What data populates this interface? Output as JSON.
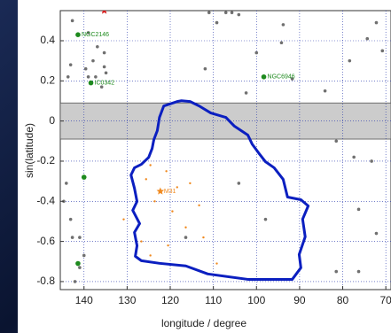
{
  "chart_data": {
    "type": "scatter",
    "xlabel": "longitude / degree",
    "ylabel": "sin(latitude)",
    "xlim": [
      145.5,
      68.8
    ],
    "ylim": [
      -0.84,
      0.55
    ],
    "xticks": [
      140,
      130,
      120,
      110,
      100,
      90,
      80,
      70
    ],
    "yticks": [
      -0.8,
      -0.6,
      -0.4,
      -0.2,
      0,
      0.2,
      0.4
    ],
    "grid": true,
    "grid_color": "#2233aa",
    "band": [
      -0.09,
      0.09
    ],
    "band_color": "#cccccc",
    "series": [
      {
        "style": "polygon",
        "color": "#0b1fc0",
        "x": [
          118.4,
          121.5,
          122.5,
          123.0,
          123.8,
          124.2,
          125.0,
          126.7,
          128.3,
          129.1,
          128.3,
          127.7,
          128.7,
          127.1,
          128.3,
          127.7,
          128.1,
          126.7,
          122.5,
          116.4,
          111.3,
          102.0,
          91.7,
          89.7,
          90.1,
          88.7,
          89.3,
          88.0,
          89.7,
          92.8,
          93.8,
          95.9,
          97.9,
          99.5,
          101.0,
          102.0,
          105.1,
          107.1,
          110.6,
          113.3,
          115.4,
          117.4
        ],
        "y": [
          0.097,
          0.075,
          0.018,
          -0.048,
          -0.093,
          -0.137,
          -0.181,
          -0.216,
          -0.233,
          -0.269,
          -0.335,
          -0.401,
          -0.445,
          -0.511,
          -0.555,
          -0.621,
          -0.674,
          -0.696,
          -0.709,
          -0.722,
          -0.762,
          -0.789,
          -0.789,
          -0.731,
          -0.665,
          -0.577,
          -0.489,
          -0.423,
          -0.392,
          -0.379,
          -0.291,
          -0.233,
          -0.203,
          -0.159,
          -0.115,
          -0.07,
          -0.026,
          0.018,
          0.04,
          0.075,
          0.097,
          0.101
        ]
      },
      {
        "style": "dot",
        "color": "#707070",
        "x": [
          142.7,
          139.0,
          136.9,
          135.3,
          135.3,
          134.9,
          139.6,
          139.0,
          137.3,
          135.9,
          143.7,
          143.1,
          137.9,
          107.1,
          105.7,
          104.1,
          109.2,
          111.0,
          93.8,
          94.2,
          100.0,
          111.9,
          102.4,
          91.7,
          84.1,
          78.4,
          74.3,
          72.2,
          70.8,
          81.5,
          77.4,
          73.3,
          76.3,
          72.2,
          81.5,
          144.1,
          144.7,
          143.1,
          142.7,
          141.0,
          140.0,
          141.0,
          142.1,
          116.4,
          97.9,
          104.1,
          76.3
        ],
        "y": [
          0.5,
          0.44,
          0.37,
          0.34,
          0.27,
          0.24,
          0.26,
          0.22,
          0.22,
          0.17,
          0.22,
          0.28,
          0.3,
          0.54,
          0.54,
          0.53,
          0.49,
          0.54,
          0.48,
          0.39,
          0.34,
          0.26,
          0.14,
          0.21,
          0.15,
          0.3,
          0.41,
          0.49,
          0.35,
          -0.1,
          -0.18,
          -0.2,
          -0.44,
          -0.56,
          -0.75,
          -0.31,
          -0.4,
          -0.49,
          -0.58,
          -0.58,
          -0.67,
          -0.73,
          -0.8,
          -0.58,
          -0.49,
          -0.31,
          -0.75
        ]
      },
      {
        "style": "dot",
        "color": "#f08a20",
        "size": 1.2,
        "x": [
          124.6,
          125.6,
          123.6,
          119.5,
          118.4,
          115.4,
          120.9,
          113.3,
          126.7,
          124.6,
          109.2,
          130.8,
          116.4,
          112.3,
          120.5
        ],
        "y": [
          -0.22,
          -0.29,
          -0.4,
          -0.45,
          -0.33,
          -0.31,
          -0.25,
          -0.42,
          -0.6,
          -0.67,
          -0.71,
          -0.49,
          -0.53,
          -0.58,
          -0.62
        ]
      },
      {
        "style": "dot",
        "color": "#1e8a1e",
        "size": 2.8,
        "x": [
          141.4,
          138.4,
          98.3,
          140.0,
          141.4
        ],
        "y": [
          0.43,
          0.19,
          0.22,
          -0.28,
          -0.71
        ],
        "labels": [
          "NGC2146",
          "IC0342",
          "NGC6946",
          null,
          null
        ]
      },
      {
        "style": "star",
        "color": "#f08a20",
        "x": [
          122.3
        ],
        "y": [
          -0.35
        ],
        "labels": [
          "M31"
        ]
      },
      {
        "style": "star",
        "color": "#d42020",
        "x": [
          135.3
        ],
        "y": [
          0.55
        ]
      }
    ]
  }
}
